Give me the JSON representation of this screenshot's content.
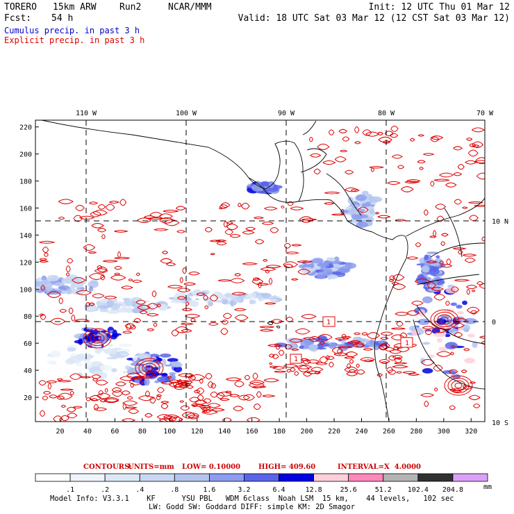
{
  "header": {
    "model": "TORERO",
    "resolution": "15km ARW",
    "run": "Run2",
    "org": "NCAR/MMM",
    "init": "Init: 12 UTC Thu 01 Mar 12",
    "fcst_label": "Fcst:",
    "fcst_hours": "54 h",
    "valid": "Valid: 18 UTC Sat 03 Mar 12 (12 CST Sat 03 Mar 12)"
  },
  "legend": {
    "cumulus": "Cumulus precip. in past 3 h",
    "explicit": "Explicit precip. in past 3 h"
  },
  "map": {
    "top_lon_labels": [
      "110 W",
      "100 W",
      "90 W",
      "80 W",
      "70 W"
    ],
    "right_lat_labels": [
      "10 N",
      "0",
      "10 S"
    ],
    "y_ticks": [
      "220",
      "200",
      "180",
      "160",
      "140",
      "120",
      "100",
      "80",
      "60",
      "40",
      "20"
    ],
    "x_ticks": [
      "20",
      "40",
      "60",
      "80",
      "100",
      "120",
      "140",
      "160",
      "180",
      "200",
      "220",
      "240",
      "260",
      "280",
      "300",
      "320"
    ],
    "markers": [
      "1",
      "1",
      "1"
    ],
    "colors": {
      "contour": "#dd0000",
      "coast": "#000000",
      "grid": "#000000"
    }
  },
  "contours_line": {
    "label": "CONTOURS:",
    "units": "UNITS=mm",
    "low": "LOW= 0.10000",
    "high": "HIGH= 409.60",
    "interval": "INTERVAL=X  4.0000"
  },
  "colorbar": {
    "labels": [
      ".1",
      ".2",
      ".4",
      ".8",
      "1.6",
      "3.2",
      "6.4",
      "12.8",
      "25.6",
      "51.2",
      "102.4",
      "204.8"
    ],
    "unit": "mm",
    "colors": [
      "#ffffff",
      "#eef4fa",
      "#dce8f6",
      "#c8d8f2",
      "#b4c4f0",
      "#8c9cee",
      "#5a64ea",
      "#0000e0",
      "#ffd0d8",
      "#ff88bb",
      "#b4b4b4",
      "#303030",
      "#dca0f8"
    ]
  },
  "footer": {
    "line1": "Model Info: V3.3.1    KF      YSU PBL   WDM 6class  Noah LSM  15 km,    44 levels,   102 sec",
    "line2": "LW: Godd SW: Goddard DIFF: simple KM: 2D Smagor"
  }
}
